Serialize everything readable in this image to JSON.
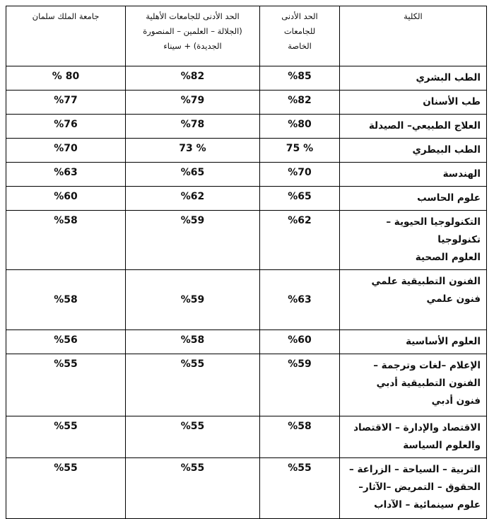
{
  "table": {
    "header": [
      [
        "الكلية"
      ],
      [
        "الحد الأدنى",
        "للجامعات",
        "الخاصة"
      ],
      [
        "الحد الأدنى للجامعات الأهلية",
        "(الجلالة – العلمين – المنصورة",
        "الجديدة) + سيناء"
      ],
      [
        "جامعة الملك سلمان"
      ]
    ],
    "rows": [
      [
        [
          "الطب البشري"
        ],
        "%85",
        "%82",
        "% 80"
      ],
      [
        [
          "طب الأسنان"
        ],
        "%82",
        "%79",
        "%77"
      ],
      [
        [
          "العلاج الطبيعي– الصيدلة"
        ],
        "%80",
        "%78",
        "%76"
      ],
      [
        [
          "الطب البيطري"
        ],
        "75 %",
        "73 %",
        "%70"
      ],
      [
        [
          "الهندسة"
        ],
        "%70",
        "%65",
        "%63"
      ],
      [
        [
          "علوم الحاسب"
        ],
        "%65",
        "%62",
        "%60"
      ],
      [
        [
          "التكنولوجيا الحيوية – تكنولوجيا",
          "العلوم الصحية"
        ],
        "%62",
        "%59",
        "%58"
      ],
      [
        [
          "الفنون التطبيقية      علمي",
          "فنون           علمي"
        ],
        "%63",
        "%59",
        "%58"
      ],
      [
        [
          "العلوم الأساسية"
        ],
        "%60",
        "%58",
        "%56"
      ],
      [
        [
          "الإعلام –لغات وترجمة –",
          "الفنون التطبيقية    أدبي",
          "فنون           أدبي"
        ],
        "%59",
        "%55",
        "%55"
      ],
      [
        [
          "الاقتصاد والإدارة – الاقتصاد",
          "والعلوم السياسة"
        ],
        "%58",
        "%55",
        "%55"
      ],
      [
        [
          "التربية – السياحة – الزراعة –",
          "الحقوق – التمريض –الآثار–",
          "علوم سينمائية – الآداب"
        ],
        "%55",
        "%55",
        "%55"
      ]
    ]
  }
}
